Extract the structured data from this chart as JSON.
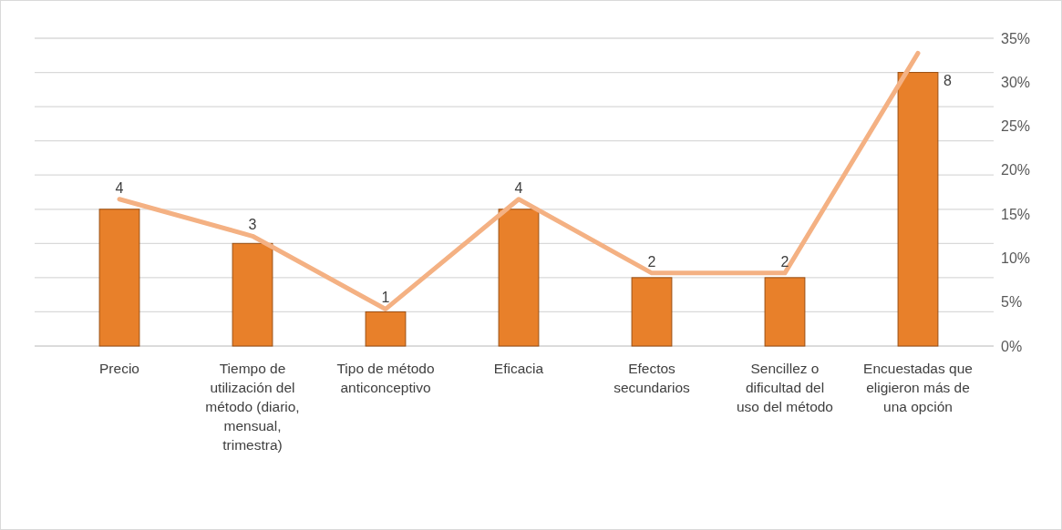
{
  "chart_data": {
    "type": "bar",
    "categories": [
      "Precio",
      "Tiempo de utilización del método (diario, mensual, trimestra)",
      "Tipo de método anticonceptivo",
      "Eficacia",
      "Efectos secundarios",
      "Sencillez o dificultad del uso del método",
      "Encuestadas que eligieron más de una opción"
    ],
    "series": [
      {
        "color": "#e8802a",
        "values": [
          4,
          3,
          1,
          4,
          2,
          2,
          8
        ],
        "value_labels": [
          "4",
          "3",
          "1",
          "4",
          "2",
          "2",
          "8"
        ]
      },
      {
        "type": "line",
        "axis": "y2",
        "color": "#f4b183",
        "values": [
          16.7,
          12.5,
          4.2,
          16.7,
          8.3,
          8.3,
          33.3
        ]
      }
    ],
    "ylim": [
      0,
      9
    ],
    "yticks": [
      {
        "value": 0,
        "label": null
      },
      {
        "value": 1,
        "label": null
      },
      {
        "value": 2,
        "label": null
      },
      {
        "value": 3,
        "label": null
      },
      {
        "value": 4,
        "label": null
      },
      {
        "value": 5,
        "label": null
      },
      {
        "value": 6,
        "label": null
      },
      {
        "value": 7,
        "label": null
      },
      {
        "value": 8,
        "label": null
      },
      {
        "value": 9,
        "label": null
      }
    ],
    "y2lim": [
      0,
      35
    ],
    "y2ticks": [
      {
        "value": 0,
        "label": "0%"
      },
      {
        "value": 5,
        "label": "5%"
      },
      {
        "value": 10,
        "label": "10%"
      },
      {
        "value": 15,
        "label": "15%"
      },
      {
        "value": 20,
        "label": "20%"
      },
      {
        "value": 25,
        "label": "25%"
      },
      {
        "value": 30,
        "label": "30%"
      },
      {
        "value": 35,
        "label": "35%"
      }
    ],
    "grid": "y",
    "marker": "none",
    "line_style": "solid"
  }
}
